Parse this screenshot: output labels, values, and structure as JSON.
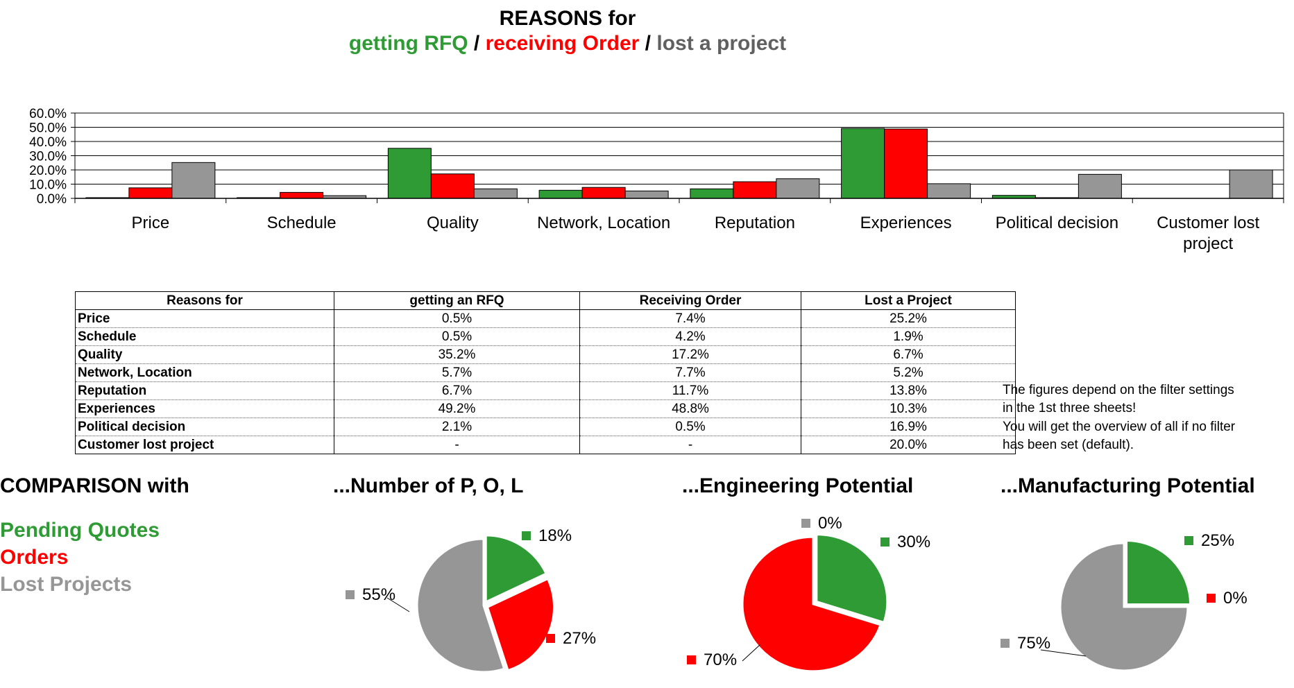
{
  "title": {
    "line1": "REASONS for",
    "part_rfq": "getting RFQ",
    "sep1": " / ",
    "part_order": "receiving Order",
    "sep2": " / ",
    "part_lost": "lost a project"
  },
  "colors": {
    "rfq": "#2e9b35",
    "order": "#ff0000",
    "lost": "#969696"
  },
  "chart_data": [
    {
      "type": "bar",
      "categories": [
        "Price",
        "Schedule",
        "Quality",
        "Network, Location",
        "Reputation",
        "Experiences",
        "Political decision",
        "Customer lost project"
      ],
      "series": [
        {
          "values": [
            0.5,
            0.5,
            35.2,
            5.7,
            6.7,
            49.2,
            2.1,
            null
          ],
          "color": "#2e9b35"
        },
        {
          "values": [
            7.4,
            4.2,
            17.2,
            7.7,
            11.7,
            48.8,
            0.5,
            null
          ],
          "color": "#ff0000"
        },
        {
          "values": [
            25.2,
            1.9,
            6.7,
            5.2,
            13.8,
            10.3,
            16.9,
            20.0
          ],
          "color": "#969696"
        }
      ],
      "y_ticks": [
        "60.0%",
        "50.0%",
        "40.0%",
        "30.0%",
        "20.0%",
        "10.0%",
        "0.0%"
      ],
      "ylim": [
        0,
        60
      ],
      "grid": true
    },
    {
      "type": "pie",
      "title": "...Number of P, O, L",
      "slices": [
        {
          "value": 18,
          "label": "18%",
          "color": "#2e9b35"
        },
        {
          "value": 27,
          "label": "27%",
          "color": "#ff0000"
        },
        {
          "value": 55,
          "label": "55%",
          "color": "#969696"
        }
      ]
    },
    {
      "type": "pie",
      "title": "...Engineering Potential",
      "slices": [
        {
          "value": 30,
          "label": "30%",
          "color": "#2e9b35"
        },
        {
          "value": 70,
          "label": "70%",
          "color": "#ff0000"
        },
        {
          "value": 0,
          "label": "0%",
          "color": "#969696"
        }
      ]
    },
    {
      "type": "pie",
      "title": "...Manufacturing Potential",
      "slices": [
        {
          "value": 25,
          "label": "25%",
          "color": "#2e9b35"
        },
        {
          "value": 0,
          "label": "0%",
          "color": "#ff0000"
        },
        {
          "value": 75,
          "label": "75%",
          "color": "#969696"
        }
      ]
    }
  ],
  "category_labels": [
    [
      "Price"
    ],
    [
      "Schedule"
    ],
    [
      "Quality"
    ],
    [
      "Network, Location"
    ],
    [
      "Reputation"
    ],
    [
      "Experiences"
    ],
    [
      "Political decision"
    ],
    [
      "Customer lost",
      "project"
    ]
  ],
  "table": {
    "headers": [
      "Reasons for",
      "getting an RFQ",
      "Receiving Order",
      "Lost a Project"
    ],
    "rows": [
      [
        "Price",
        "0.5%",
        "7.4%",
        "25.2%"
      ],
      [
        "Schedule",
        "0.5%",
        "4.2%",
        "1.9%"
      ],
      [
        "Quality",
        "35.2%",
        "17.2%",
        "6.7%"
      ],
      [
        "Network, Location",
        "5.7%",
        "7.7%",
        "5.2%"
      ],
      [
        "Reputation",
        "6.7%",
        "11.7%",
        "13.8%"
      ],
      [
        "Experiences",
        "49.2%",
        "48.8%",
        "10.3%"
      ],
      [
        "Political decision",
        "2.1%",
        "0.5%",
        "16.9%"
      ],
      [
        "Customer lost project",
        "-",
        "-",
        "20.0%"
      ]
    ]
  },
  "note": {
    "line1": "The figures depend on the filter settings",
    "line2": "in the 1st three sheets!",
    "line3": "You will get the overview of all if no filter",
    "line4": "has been set (default)."
  },
  "comparison": {
    "title": "COMPARISON with",
    "pending": "Pending Quotes",
    "orders": "Orders",
    "lost": "Lost Projects"
  }
}
